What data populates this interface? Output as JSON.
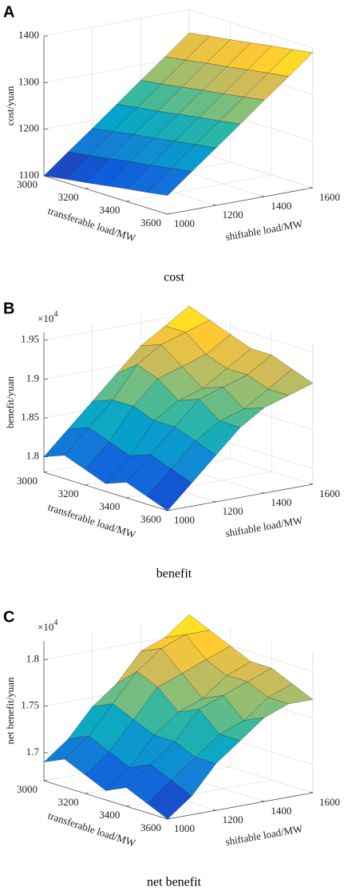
{
  "chart_data": [
    {
      "type": "surface",
      "panel_label": "A",
      "caption": "cost",
      "xlabel": "transferable load/MW",
      "ylabel": "shiftable load/MW",
      "zlabel": "cost/yuan",
      "x": [
        3000,
        3100,
        3200,
        3300,
        3400,
        3500,
        3600
      ],
      "y": [
        1000,
        1100,
        1200,
        1300,
        1400,
        1500,
        1600
      ],
      "z": [
        [
          1100,
          1107,
          1113,
          1120,
          1127,
          1133,
          1140
        ],
        [
          1142,
          1148,
          1155,
          1162,
          1168,
          1175,
          1182
        ],
        [
          1183,
          1190,
          1197,
          1203,
          1210,
          1217,
          1223
        ],
        [
          1225,
          1232,
          1238,
          1245,
          1252,
          1258,
          1265
        ],
        [
          1267,
          1273,
          1280,
          1287,
          1293,
          1300,
          1307
        ],
        [
          1308,
          1315,
          1322,
          1328,
          1335,
          1342,
          1348
        ],
        [
          1350,
          1357,
          1363,
          1370,
          1377,
          1383,
          1390
        ]
      ],
      "xlim": [
        3000,
        3600
      ],
      "ylim": [
        1000,
        1600
      ],
      "zlim": [
        1100,
        1400
      ],
      "xticks": [
        3000,
        3200,
        3400,
        3600
      ],
      "yticks": [
        1000,
        1200,
        1400,
        1600
      ],
      "zticks": [
        1100,
        1200,
        1300,
        1400
      ],
      "grid": true,
      "colormap": "parula"
    },
    {
      "type": "surface",
      "panel_label": "B",
      "caption": "benefit",
      "xlabel": "transferable load/MW",
      "ylabel": "shiftable load/MW",
      "zlabel": "benefit/yuan",
      "zscale": {
        "base": "×10",
        "exponent": "4"
      },
      "x": [
        3000,
        3100,
        3200,
        3300,
        3400,
        3500,
        3600
      ],
      "y": [
        1000,
        1100,
        1200,
        1300,
        1400,
        1500,
        1600
      ],
      "z": [
        [
          1.8,
          1.81,
          1.8,
          1.79,
          1.8,
          1.79,
          1.78
        ],
        [
          1.83,
          1.84,
          1.83,
          1.82,
          1.83,
          1.82,
          1.81
        ],
        [
          1.86,
          1.87,
          1.87,
          1.86,
          1.86,
          1.85,
          1.84
        ],
        [
          1.89,
          1.91,
          1.9,
          1.88,
          1.89,
          1.87,
          1.87
        ],
        [
          1.92,
          1.93,
          1.91,
          1.89,
          1.9,
          1.88,
          1.89
        ],
        [
          1.94,
          1.94,
          1.92,
          1.91,
          1.91,
          1.9,
          1.9
        ],
        [
          1.96,
          1.95,
          1.94,
          1.93,
          1.93,
          1.92,
          1.91
        ]
      ],
      "xlim": [
        3000,
        3600
      ],
      "ylim": [
        1000,
        1600
      ],
      "zlim": [
        1.78,
        1.96
      ],
      "xticks": [
        3000,
        3200,
        3400,
        3600
      ],
      "yticks": [
        1000,
        1200,
        1400,
        1600
      ],
      "zticks": [
        1.8,
        1.85,
        1.9,
        1.95
      ],
      "grid": true,
      "colormap": "parula"
    },
    {
      "type": "surface",
      "panel_label": "C",
      "caption": "net benefit",
      "xlabel": "transferable load/MW",
      "ylabel": "shiftable load/MW",
      "zlabel": "net benefit/yuan",
      "zscale": {
        "base": "×10",
        "exponent": "4"
      },
      "x": [
        3000,
        3100,
        3200,
        3300,
        3400,
        3500,
        3600
      ],
      "y": [
        1000,
        1100,
        1200,
        1300,
        1400,
        1500,
        1600
      ],
      "z": [
        [
          1.69,
          1.7,
          1.69,
          1.68,
          1.69,
          1.68,
          1.67
        ],
        [
          1.71,
          1.72,
          1.71,
          1.7,
          1.71,
          1.7,
          1.69
        ],
        [
          1.74,
          1.75,
          1.74,
          1.73,
          1.73,
          1.72,
          1.72
        ],
        [
          1.76,
          1.78,
          1.77,
          1.75,
          1.76,
          1.74,
          1.74
        ],
        [
          1.79,
          1.8,
          1.78,
          1.76,
          1.77,
          1.75,
          1.76
        ],
        [
          1.8,
          1.81,
          1.79,
          1.78,
          1.78,
          1.77,
          1.77
        ],
        [
          1.82,
          1.81,
          1.8,
          1.79,
          1.79,
          1.78,
          1.77
        ]
      ],
      "xlim": [
        3000,
        3600
      ],
      "ylim": [
        1000,
        1600
      ],
      "zlim": [
        1.67,
        1.82
      ],
      "xticks": [
        3000,
        3200,
        3400,
        3600
      ],
      "yticks": [
        1000,
        1200,
        1400,
        1600
      ],
      "zticks": [
        1.7,
        1.75,
        1.8
      ],
      "grid": true,
      "colormap": "parula"
    }
  ]
}
